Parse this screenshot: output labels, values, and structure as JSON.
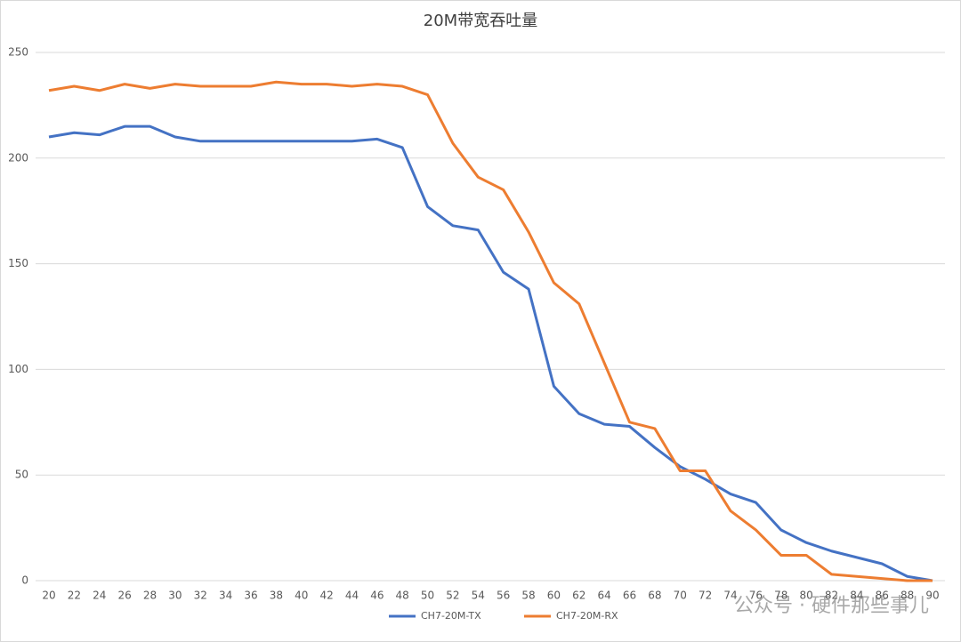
{
  "chart_data": {
    "type": "line",
    "title": "20M带宽吞吐量",
    "categories": [
      "20",
      "22",
      "24",
      "26",
      "28",
      "30",
      "32",
      "34",
      "36",
      "38",
      "40",
      "42",
      "44",
      "46",
      "48",
      "50",
      "52",
      "54",
      "56",
      "58",
      "60",
      "62",
      "64",
      "66",
      "68",
      "70",
      "72",
      "74",
      "76",
      "78",
      "80",
      "82",
      "84",
      "86",
      "88",
      "90"
    ],
    "series": [
      {
        "name": "CH7-20M-TX",
        "color": "#4472c4",
        "values": [
          210,
          212,
          211,
          215,
          215,
          210,
          208,
          208,
          208,
          208,
          208,
          208,
          208,
          209,
          205,
          177,
          168,
          166,
          146,
          138,
          92,
          79,
          74,
          73,
          63,
          54,
          48,
          41,
          37,
          24,
          18,
          14,
          11,
          8,
          2,
          0
        ]
      },
      {
        "name": "CH7-20M-RX",
        "color": "#ed7d31",
        "values": [
          232,
          234,
          232,
          235,
          233,
          235,
          234,
          234,
          234,
          236,
          235,
          235,
          234,
          235,
          234,
          230,
          207,
          191,
          185,
          165,
          141,
          131,
          103,
          75,
          72,
          52,
          52,
          33,
          24,
          12,
          12,
          3,
          2,
          1,
          0,
          0
        ]
      }
    ],
    "ylim": [
      0,
      250
    ],
    "yticks": [
      0,
      50,
      100,
      150,
      200,
      250
    ],
    "grid": true,
    "legend": "bottom",
    "watermark": "公众号 · 硬件那些事儿"
  }
}
